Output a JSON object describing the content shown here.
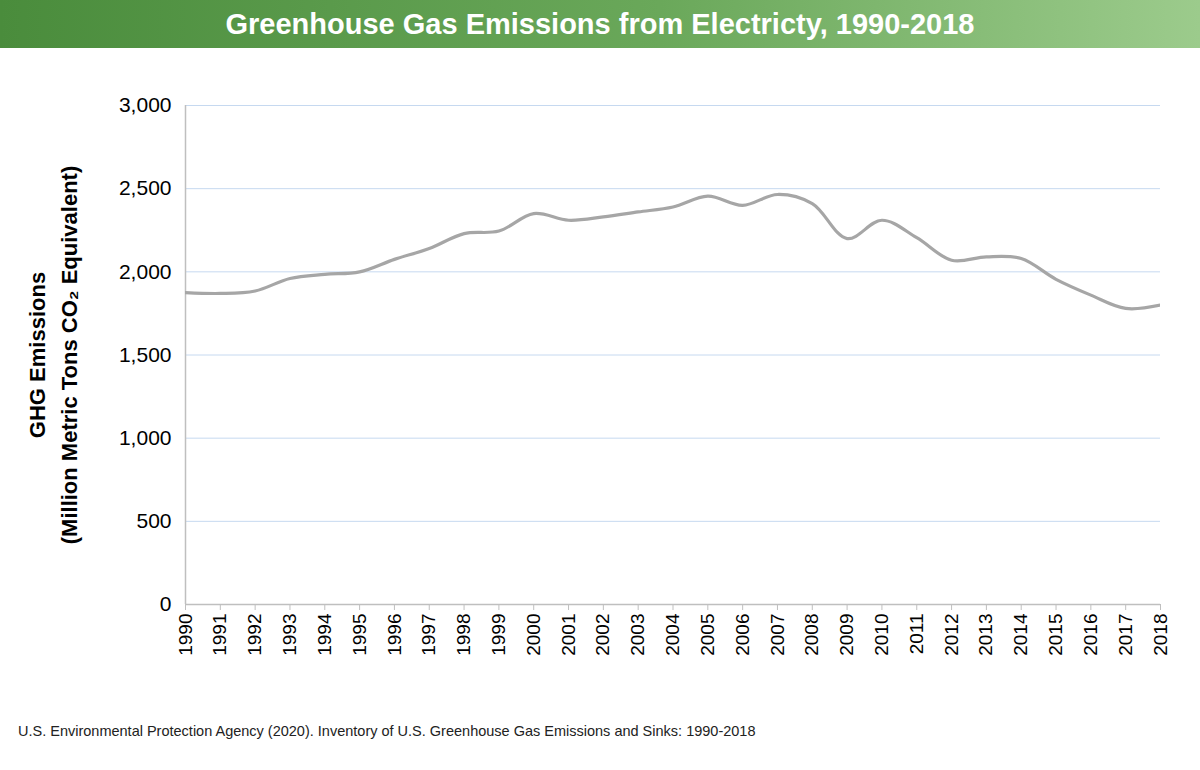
{
  "chart_data": {
    "type": "line",
    "title": "Greenhouse Gas Emissions from Electricty, 1990-2018",
    "ylabel_lines": [
      "GHG Emissions",
      "(Million Metric Tons CO₂ Equivalent)"
    ],
    "source": "U.S. Environmental Protection Agency (2020). Inventory of U.S. Greenhouse Gas Emissions and Sinks: 1990-2018",
    "x": [
      1990,
      1991,
      1992,
      1993,
      1994,
      1995,
      1996,
      1997,
      1998,
      1999,
      2000,
      2001,
      2002,
      2003,
      2004,
      2005,
      2006,
      2007,
      2008,
      2009,
      2010,
      2011,
      2012,
      2013,
      2014,
      2015,
      2016,
      2017,
      2018
    ],
    "values": [
      1875,
      1870,
      1885,
      1960,
      1985,
      2000,
      2075,
      2140,
      2230,
      2245,
      2350,
      2310,
      2330,
      2360,
      2390,
      2455,
      2400,
      2465,
      2410,
      2200,
      2310,
      2205,
      2070,
      2090,
      2080,
      1955,
      1860,
      1780,
      1800
    ],
    "color": "#a6a6a6",
    "xlim": [
      1990,
      2018
    ],
    "xticks": [
      1990,
      1991,
      1992,
      1993,
      1994,
      1995,
      1996,
      1997,
      1998,
      1999,
      2000,
      2001,
      2002,
      2003,
      2004,
      2005,
      2006,
      2007,
      2008,
      2009,
      2010,
      2011,
      2012,
      2013,
      2014,
      2015,
      2016,
      2017,
      2018
    ],
    "ylim": [
      0,
      3000
    ],
    "yticks": [
      0,
      500,
      {
        "value": 1000,
        "label": "1,000"
      },
      {
        "value": 1500,
        "label": "1,500"
      },
      {
        "value": 2000,
        "label": "2,000"
      },
      {
        "value": 2500,
        "label": "2,500"
      },
      {
        "value": 3000,
        "label": "3,000"
      }
    ],
    "grid": true
  }
}
